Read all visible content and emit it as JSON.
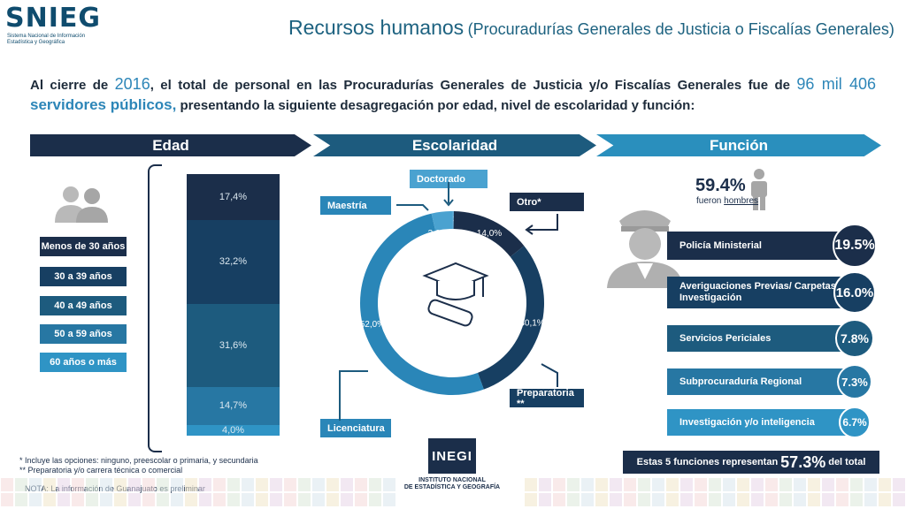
{
  "header": {
    "logo_text": "SNIEG",
    "logo_sub_line1": "Sistema Nacional de Información",
    "logo_sub_line2": "Estadística y Geográfica",
    "title_main": "Recursos humanos",
    "title_sub": "(Procuradurías Generales de Justicia o Fiscalías Generales)"
  },
  "intro": {
    "part1": "Al cierre de ",
    "year": "2016",
    "part2": ", el total de personal en las Procuradurías Generales de Justicia y/o Fiscalías Generales fue de ",
    "total": "96 mil 406",
    "part3": "servidores públicos,",
    "part4": " presentando la siguiente desagregación por edad, nivel de escolaridad y función:"
  },
  "sections": {
    "edad": "Edad",
    "escolaridad": "Escolaridad",
    "funcion": "Función"
  },
  "chart_data": [
    {
      "type": "bar",
      "subtype": "stacked-100",
      "categories": [
        "Menos de 30 años",
        "30 a 39 años",
        "40 a 49 años",
        "50 a 59 años",
        "60 años o más"
      ],
      "values": [
        17.4,
        32.2,
        31.6,
        14.7,
        4.0
      ],
      "value_labels": [
        "17,4%",
        "32,2%",
        "31,6%",
        "14,7%",
        "4,0%"
      ],
      "colors": [
        "#1b2e4a",
        "#173f62",
        "#1d5b7e",
        "#2777a3",
        "#2f94c5"
      ]
    },
    {
      "type": "pie",
      "subtype": "donut",
      "categories": [
        "Doctorado",
        "Otro*",
        "Preparatoria **",
        "Licenciatura",
        "Maestría"
      ],
      "values": [
        0.3,
        14.0,
        30.1,
        52.0,
        3.6
      ],
      "value_labels": [
        "0,3%",
        "14,0%",
        "30,1%",
        "52,0%",
        "3,6%"
      ],
      "colors": [
        "#5aa9d6",
        "#1b2e4a",
        "#173f62",
        "#2a86b8",
        "#4aa2d0"
      ]
    },
    {
      "type": "bar",
      "subtype": "horizontal",
      "categories": [
        "Policía Ministerial",
        "Averiguaciones Previas/ Carpetas de Investigación",
        "Servicios Periciales",
        "Subprocuraduría Regional",
        "Investigación y/o inteligencia"
      ],
      "values": [
        19.5,
        16.0,
        7.8,
        7.3,
        6.7
      ],
      "value_labels": [
        "19.5%",
        "16.0%",
        "7.8%",
        "7.3%",
        "6.7%"
      ],
      "colors": [
        "#1b2e4a",
        "#173f62",
        "#1d5b7e",
        "#2777a3",
        "#2f94c5"
      ]
    }
  ],
  "escolaridad_labels": {
    "doctorado": "Doctorado",
    "maestria": "Maestría",
    "otro": "Otro*",
    "preparatoria": "Preparatoria **",
    "licenciatura": "Licenciatura"
  },
  "funcion": {
    "stat_pct": "59.4%",
    "stat_label1": "fueron ",
    "stat_label2": "hombres",
    "summary1": "Estas 5 funciones representan",
    "summary_pct": "57.3%",
    "summary2": "del total"
  },
  "notes": {
    "n1": "* Incluye las opciones: ninguno, preescolar o primaria, y secundaria",
    "n2": "**  Preparatoria y/o carrera técnica o comercial",
    "n3": "NOTA: La información de Guanajuato es preliminar"
  },
  "inegi": {
    "name": "INEGI",
    "line1": "INSTITUTO NACIONAL",
    "line2": "DE ESTADÍSTICA Y GEOGRAFÍA"
  },
  "colors": {
    "navy": "#1b2e4a",
    "teal": "#1d6280",
    "accent": "#2d86b8",
    "light": "#2f94c5"
  }
}
